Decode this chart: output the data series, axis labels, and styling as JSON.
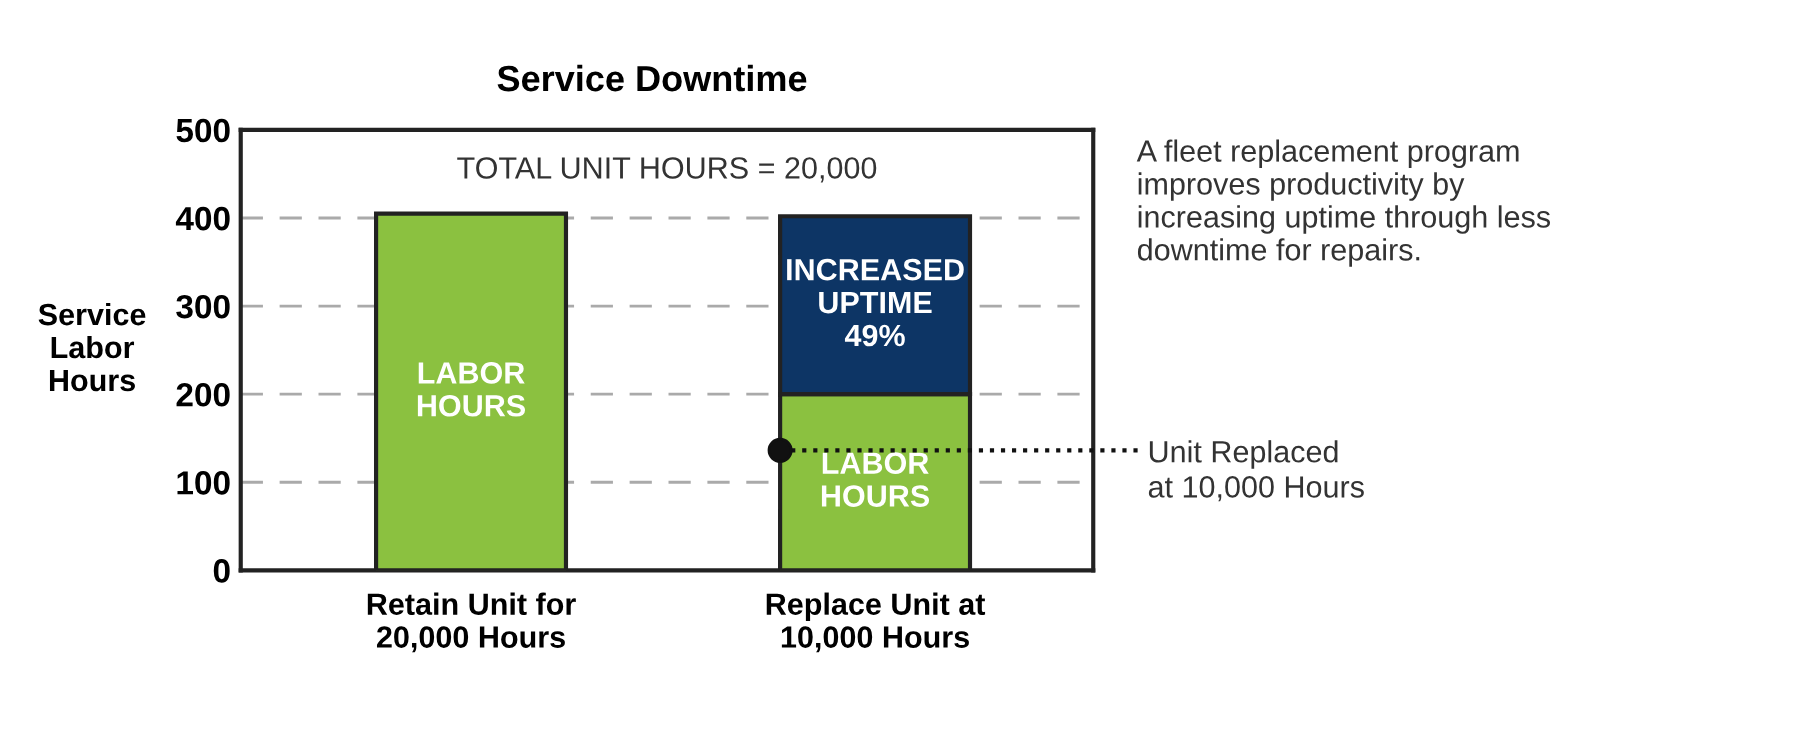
{
  "chart_data": {
    "type": "bar",
    "stacked": true,
    "title": "Service Downtime",
    "ylabel": "Service\nLabor\nHours",
    "categories": [
      "Retain Unit for\n20,000 Hours",
      "Replace Unit at\n10,000 Hours"
    ],
    "series": [
      {
        "color": "#8bc140",
        "values": [
          405,
          200
        ],
        "value_labels": [
          "LABOR\nHOURS",
          "LABOR\nHOURS"
        ]
      },
      {
        "color": "#0d3565",
        "values": [
          null,
          202
        ],
        "value_labels": [
          null,
          "INCREASED\nUPTIME\n49%"
        ]
      }
    ],
    "ylim": [
      0,
      500
    ],
    "yticks": [
      0,
      100,
      200,
      300,
      400,
      500
    ],
    "grid": "y",
    "annotations": [
      "TOTAL UNIT HOURS = 20,000",
      "Unit Replaced\nat 10,000 Hours",
      "A fleet replacement program\nimproves productivity by\nincreasing uptime through less\ndowntime for repairs."
    ]
  }
}
